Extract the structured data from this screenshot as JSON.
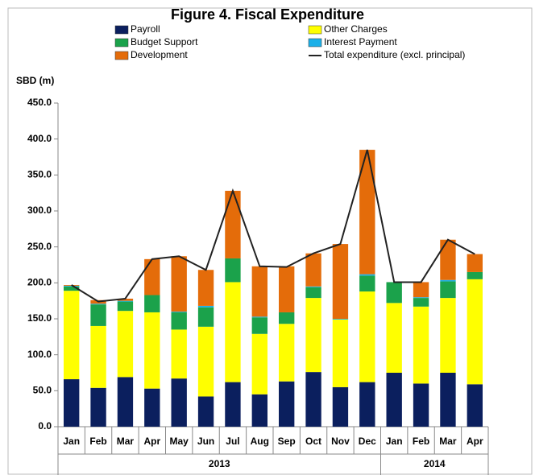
{
  "chart_data": {
    "type": "bar",
    "stacked": true,
    "title": "Figure 4. Fiscal Expenditure",
    "y_label": "SBD (m)",
    "categories": [
      "Jan",
      "Feb",
      "Mar",
      "Apr",
      "May",
      "Jun",
      "Jul",
      "Aug",
      "Sep",
      "Oct",
      "Nov",
      "Dec",
      "Jan",
      "Feb",
      "Mar",
      "Apr"
    ],
    "category_groups": [
      {
        "label": "2013",
        "count": 12
      },
      {
        "label": "2014",
        "count": 4
      }
    ],
    "series": [
      {
        "name": "Payroll",
        "color": "#0b1f5e",
        "values": [
          66,
          54,
          69,
          53,
          67,
          42,
          62,
          45,
          63,
          76,
          55,
          62,
          75,
          60,
          75,
          59
        ]
      },
      {
        "name": "Other Charges",
        "color": "#ffff00",
        "values": [
          123,
          86,
          92,
          106,
          68,
          97,
          139,
          84,
          80,
          103,
          94,
          126,
          97,
          107,
          104,
          146
        ]
      },
      {
        "name": "Budget Support",
        "color": "#1ba24b",
        "values": [
          6,
          30,
          13,
          24,
          24,
          27,
          33,
          23,
          16,
          15,
          0,
          22,
          29,
          12,
          23,
          10
        ]
      },
      {
        "name": "Interest Payment",
        "color": "#1cb0e8",
        "values": [
          1,
          1,
          1,
          0,
          1,
          2,
          0,
          1,
          0,
          1,
          1,
          2,
          0,
          1,
          2,
          0
        ]
      },
      {
        "name": "Development",
        "color": "#e46c0a",
        "values": [
          1,
          5,
          3,
          50,
          77,
          50,
          94,
          70,
          64,
          46,
          104,
          173,
          0,
          21,
          56,
          25
        ]
      },
      {
        "name": "Total expenditure  (excl. principal)",
        "type": "line",
        "color": "#222222",
        "values": [
          197,
          174,
          178,
          233,
          237,
          218,
          328,
          223,
          222,
          241,
          254,
          385,
          201,
          201,
          260,
          240
        ]
      }
    ],
    "ylim": [
      0,
      450
    ],
    "yticks": [
      {
        "value": 0,
        "label": "0.0"
      },
      {
        "value": 50,
        "label": "50.0"
      },
      {
        "value": 100,
        "label": "100.0"
      },
      {
        "value": 150,
        "label": "150.0"
      },
      {
        "value": 200,
        "label": "200.0"
      },
      {
        "value": 250,
        "label": "250.0"
      },
      {
        "value": 300,
        "label": "300.0"
      },
      {
        "value": 350,
        "label": "350.0"
      },
      {
        "value": 400,
        "label": "400.0"
      },
      {
        "value": 450,
        "label": "450.0"
      }
    ],
    "grid": false
  }
}
